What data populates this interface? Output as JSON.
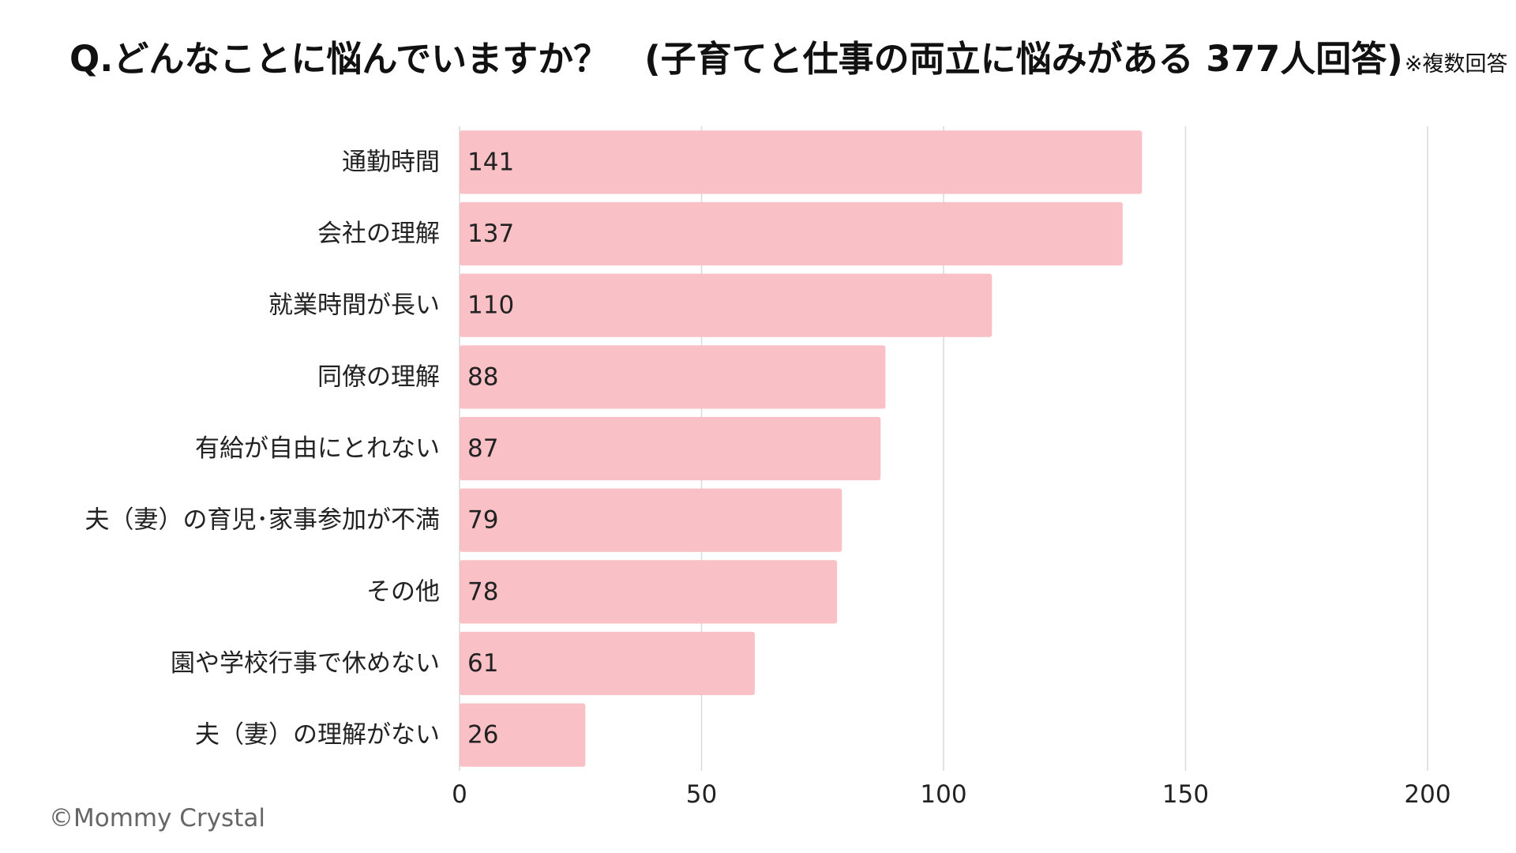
{
  "title": "Q.どんなことに悩んでいますか？　(子育てと仕事の両立に悩みがある 377人回答)",
  "title_note": "※複数回答",
  "copyright": "©Mommy Crystal",
  "colors": {
    "bar": "#f9c0c6",
    "grid": "#d9d9d9",
    "text": "#222222"
  },
  "chart_data": {
    "type": "bar",
    "orientation": "horizontal",
    "categories": [
      "通勤時間",
      "会社の理解",
      "就業時間が長い",
      "同僚の理解",
      "有給が自由にとれない",
      "夫（妻）の育児･家事参加が不満",
      "その他",
      "園や学校行事で休めない",
      "夫（妻）の理解がない"
    ],
    "values": [
      141,
      137,
      110,
      88,
      87,
      79,
      78,
      61,
      26
    ],
    "xlim": [
      0,
      200
    ],
    "xticks": [
      0,
      50,
      100,
      150,
      200
    ],
    "grid": true,
    "data_labels": "inside-left"
  }
}
